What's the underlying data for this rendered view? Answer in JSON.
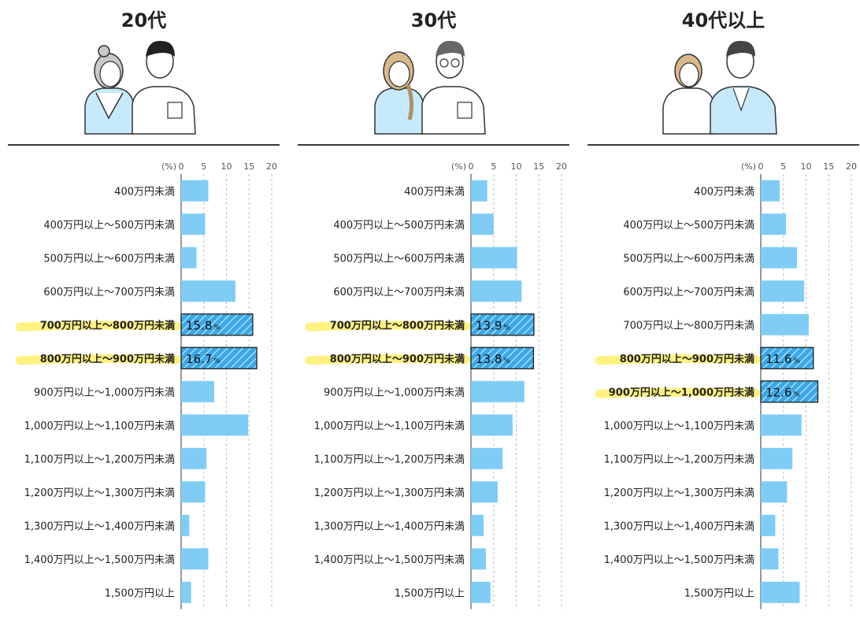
{
  "chart_data": [
    {
      "type": "bar",
      "orientation": "horizontal",
      "title": "20代",
      "unit_label": "(%)",
      "xlim": [
        0,
        20
      ],
      "ticks": [
        "0",
        "5",
        "10",
        "15",
        "20"
      ],
      "grid": true,
      "categories": [
        "400万円未満",
        "400万円以上～500万円未満",
        "500万円以上～600万円未満",
        "600万円以上～700万円未満",
        "700万円以上～800万円未満",
        "800万円以上～900万円未満",
        "900万円以上～1,000万円未満",
        "1,000万円以上～1,100万円未満",
        "1,100万円以上～1,200万円未満",
        "1,200万円以上～1,300万円未満",
        "1,300万円以上～1,400万円未満",
        "1,400万円以上～1,500万円未満",
        "1,500万円以上"
      ],
      "values": [
        6.0,
        5.3,
        3.4,
        12.0,
        15.8,
        16.7,
        7.3,
        14.8,
        5.6,
        5.3,
        1.8,
        6.0,
        2.2
      ],
      "highlighted": [
        4,
        5
      ],
      "data_labels": {
        "4": "15.8",
        "5": "16.7"
      },
      "label_suffix": "%",
      "bar_color": "#7fcdf5",
      "highlight_color": "#3aa8e8",
      "marker_color": "#fff280"
    },
    {
      "type": "bar",
      "orientation": "horizontal",
      "title": "30代",
      "unit_label": "(%)",
      "xlim": [
        0,
        20
      ],
      "ticks": [
        "0",
        "5",
        "10",
        "15",
        "20"
      ],
      "grid": true,
      "categories": [
        "400万円未満",
        "400万円以上～500万円未満",
        "500万円以上～600万円未満",
        "600万円以上～700万円未満",
        "700万円以上～800万円未満",
        "800万円以上～900万円未満",
        "900万円以上～1,000万円未満",
        "1,000万円以上～1,100万円未満",
        "1,100万円以上～1,200万円未満",
        "1,200万円以上～1,300万円未満",
        "1,300万円以上～1,400万円未満",
        "1,400万円以上～1,500万円未満",
        "1,500万円以上"
      ],
      "values": [
        3.6,
        5.0,
        10.2,
        11.2,
        13.9,
        13.8,
        11.8,
        9.2,
        7.0,
        5.9,
        2.8,
        3.3,
        4.3
      ],
      "highlighted": [
        4,
        5
      ],
      "data_labels": {
        "4": "13.9",
        "5": "13.8"
      },
      "label_suffix": "%",
      "bar_color": "#7fcdf5",
      "highlight_color": "#3aa8e8",
      "marker_color": "#fff280"
    },
    {
      "type": "bar",
      "orientation": "horizontal",
      "title": "40代以上",
      "unit_label": "(%)",
      "xlim": [
        0,
        20
      ],
      "ticks": [
        "0",
        "5",
        "10",
        "15",
        "20"
      ],
      "grid": true,
      "categories": [
        "400万円未満",
        "400万円以上～500万円未満",
        "500万円以上～600万円未満",
        "600万円以上～700万円未満",
        "700万円以上～800万円未満",
        "800万円以上～900万円未満",
        "900万円以上～1,000万円未満",
        "1,000万円以上～1,100万円未満",
        "1,100万円以上～1,200万円未満",
        "1,200万円以上～1,300万円未満",
        "1,300万円以上～1,400万円未満",
        "1,400万円以上～1,500万円未満",
        "1,500万円以上"
      ],
      "values": [
        4.2,
        5.6,
        8.0,
        9.6,
        10.6,
        11.6,
        12.6,
        9.0,
        7.0,
        5.8,
        3.2,
        3.9,
        8.6
      ],
      "highlighted": [
        5,
        6
      ],
      "data_labels": {
        "5": "11.6",
        "6": "12.6"
      },
      "label_suffix": "%",
      "bar_color": "#7fcdf5",
      "highlight_color": "#3aa8e8",
      "marker_color": "#fff280"
    }
  ]
}
